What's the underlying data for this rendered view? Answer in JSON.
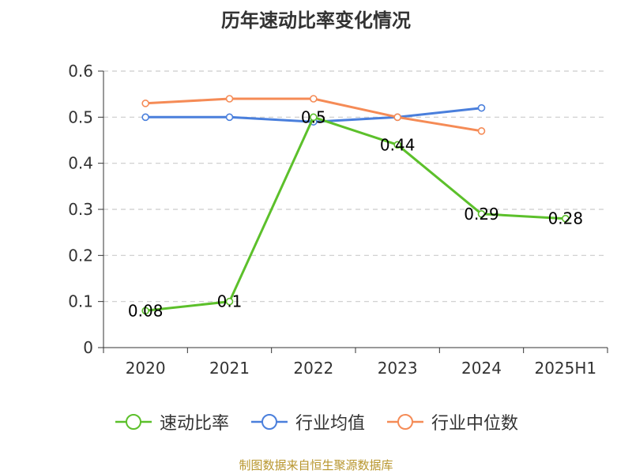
{
  "chart_data": {
    "type": "line",
    "title": "历年速动比率变化情况",
    "categories": [
      "2020",
      "2021",
      "2022",
      "2023",
      "2024",
      "2025H1"
    ],
    "series": [
      {
        "name": "速动比率",
        "color": "#5cc02b",
        "values": [
          0.08,
          0.1,
          0.5,
          0.44,
          0.29,
          0.28
        ],
        "labels": [
          "0.08",
          "0.1",
          "0.5",
          "0.44",
          "0.29",
          "0.28"
        ]
      },
      {
        "name": "行业均值",
        "color": "#4a7fdc",
        "values": [
          0.5,
          0.5,
          0.49,
          0.5,
          0.52,
          null
        ]
      },
      {
        "name": "行业中位数",
        "color": "#f58b56",
        "values": [
          0.53,
          0.54,
          0.54,
          0.5,
          0.47,
          null
        ]
      }
    ],
    "ylim": [
      0,
      0.6
    ],
    "yticks": [
      "0",
      "0.1",
      "0.2",
      "0.3",
      "0.4",
      "0.5",
      "0.6"
    ],
    "grid": true,
    "legend_position": "bottom"
  },
  "source_note": "制图数据来自恒生聚源数据库"
}
